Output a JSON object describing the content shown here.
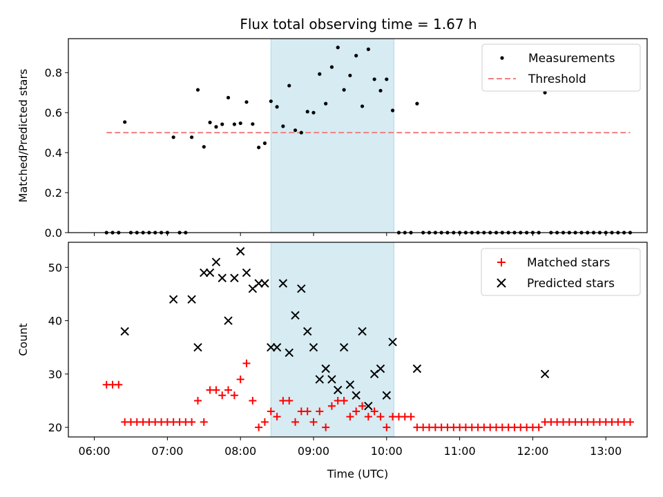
{
  "chart_data": {
    "title": "Flux total observing time = 1.67 h",
    "xlabel": "Time (UTC)",
    "x_ticks": [
      "06:00",
      "07:00",
      "08:00",
      "09:00",
      "10:00",
      "11:00",
      "12:00",
      "13:00"
    ],
    "x_tick_hours": [
      6,
      7,
      8,
      9,
      10,
      11,
      12,
      13
    ],
    "xlim_hours": [
      5.645,
      13.565
    ],
    "shaded_span_hours": [
      8.417,
      10.1
    ],
    "shade_color": "#add8e6",
    "times_hours": [
      6.167,
      6.25,
      6.333,
      6.417,
      6.5,
      6.583,
      6.667,
      6.75,
      6.833,
      6.917,
      7.0,
      7.083,
      7.167,
      7.25,
      7.333,
      7.417,
      7.5,
      7.583,
      7.667,
      7.75,
      7.833,
      7.917,
      8.0,
      8.083,
      8.167,
      8.25,
      8.333,
      8.417,
      8.5,
      8.583,
      8.667,
      8.75,
      8.833,
      8.917,
      9.0,
      9.083,
      9.167,
      9.25,
      9.333,
      9.417,
      9.5,
      9.583,
      9.667,
      9.75,
      9.833,
      9.917,
      10.0,
      10.083,
      10.167,
      10.25,
      10.333,
      10.417,
      10.5,
      10.583,
      10.667,
      10.75,
      10.833,
      10.917,
      11.0,
      11.083,
      11.167,
      11.25,
      11.333,
      11.417,
      11.5,
      11.583,
      11.667,
      11.75,
      11.833,
      11.917,
      12.0,
      12.083,
      12.167,
      12.25,
      12.333,
      12.417,
      12.5,
      12.583,
      12.667,
      12.75,
      12.833,
      12.917,
      13.0,
      13.083,
      13.167,
      13.25,
      13.333
    ],
    "panels": [
      {
        "ylabel": "Matched/Predicted stars",
        "ylim": [
          0.0,
          0.97
        ],
        "y_ticks": [
          "0.0",
          "0.2",
          "0.4",
          "0.6",
          "0.8"
        ],
        "y_tick_values": [
          0.0,
          0.2,
          0.4,
          0.6,
          0.8
        ],
        "legend_position": "top-right",
        "series": [
          {
            "name": "Measurements",
            "type": "scatter",
            "color": "#000000",
            "values": [
              0,
              0,
              0,
              0.553,
              0,
              0,
              0,
              0,
              0,
              0,
              0,
              0.477,
              0,
              0,
              0.477,
              0.714,
              0.429,
              0.551,
              0.529,
              0.542,
              0.675,
              0.542,
              0.547,
              0.653,
              0.543,
              0.426,
              0.447,
              0.657,
              0.629,
              0.532,
              0.735,
              0.512,
              0.5,
              0.605,
              0.6,
              0.793,
              0.645,
              0.828,
              0.926,
              0.714,
              0.786,
              0.885,
              0.632,
              0.917,
              0.767,
              0.71,
              0.767,
              0.611,
              0,
              0,
              0,
              0.645,
              0,
              0,
              0,
              0,
              0,
              0,
              0,
              0,
              0,
              0,
              0,
              0,
              0,
              0,
              0,
              0,
              0,
              0,
              0,
              0,
              0.7,
              0,
              0,
              0,
              0,
              0,
              0,
              0,
              0,
              0,
              0,
              0,
              0,
              0,
              0
            ]
          },
          {
            "name": "Threshold",
            "type": "dashed-line",
            "color": "#f08080",
            "y": 0.5,
            "x_range_hours": [
              6.167,
              13.333
            ]
          }
        ]
      },
      {
        "ylabel": "Count",
        "ylim": [
          18.2,
          54.7
        ],
        "y_ticks": [
          "20",
          "30",
          "40",
          "50"
        ],
        "y_tick_values": [
          20,
          30,
          40,
          50
        ],
        "legend_position": "top-right",
        "series": [
          {
            "name": "Matched stars",
            "type": "scatter-plus",
            "color": "#ff0000",
            "values": [
              28,
              28,
              28,
              21,
              21,
              21,
              21,
              21,
              21,
              21,
              21,
              21,
              21,
              21,
              21,
              25,
              21,
              27,
              27,
              26,
              27,
              26,
              29,
              32,
              25,
              20,
              21,
              23,
              22,
              25,
              25,
              21,
              23,
              23,
              21,
              23,
              20,
              24,
              25,
              25,
              22,
              23,
              24,
              22,
              23,
              22,
              20,
              22,
              22,
              22,
              22,
              20,
              20,
              20,
              20,
              20,
              20,
              20,
              20,
              20,
              20,
              20,
              20,
              20,
              20,
              20,
              20,
              20,
              20,
              20,
              20,
              20,
              21,
              21,
              21,
              21,
              21,
              21,
              21,
              21,
              21,
              21,
              21,
              21,
              21,
              21,
              21
            ]
          },
          {
            "name": "Predicted stars",
            "type": "scatter-x",
            "color": "#000000",
            "times_hours": [
              6.417,
              7.083,
              7.333,
              7.417,
              7.5,
              7.583,
              7.667,
              7.75,
              7.833,
              7.917,
              8.0,
              8.083,
              8.167,
              8.25,
              8.333,
              8.417,
              8.5,
              8.583,
              8.667,
              8.75,
              8.833,
              8.917,
              9.0,
              9.083,
              9.167,
              9.25,
              9.333,
              9.417,
              9.5,
              9.583,
              9.667,
              9.75,
              9.833,
              9.917,
              10.0,
              10.083,
              10.417,
              12.167
            ],
            "values": [
              38,
              44,
              44,
              35,
              49,
              49,
              51,
              48,
              40,
              48,
              53,
              49,
              46,
              47,
              47,
              35,
              35,
              47,
              34,
              41,
              46,
              38,
              35,
              29,
              31,
              29,
              27,
              35,
              28,
              26,
              38,
              24,
              30,
              31,
              26,
              36,
              31,
              30
            ]
          }
        ]
      }
    ]
  }
}
